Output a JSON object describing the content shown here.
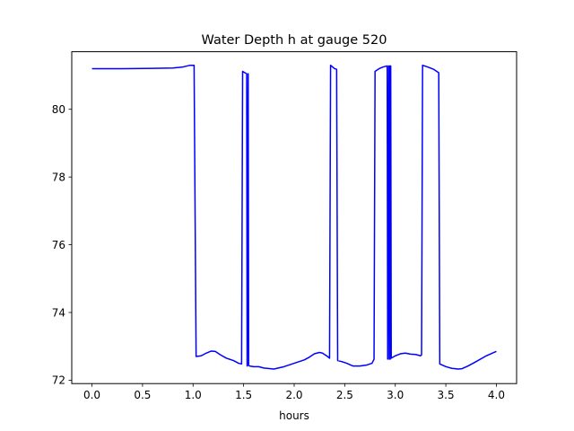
{
  "chart_data": {
    "type": "line",
    "title": "Water Depth h at gauge 520",
    "xlabel": "hours",
    "ylabel": "",
    "xlim": [
      -0.2,
      4.2
    ],
    "ylim": [
      71.9,
      81.7
    ],
    "xticks": [
      0.0,
      0.5,
      1.0,
      1.5,
      2.0,
      2.5,
      3.0,
      3.5,
      4.0
    ],
    "xtick_labels": [
      "0.0",
      "0.5",
      "1.0",
      "1.5",
      "2.0",
      "2.5",
      "3.0",
      "3.5",
      "4.0"
    ],
    "yticks": [
      72,
      74,
      76,
      78,
      80
    ],
    "ytick_labels": [
      "72",
      "74",
      "76",
      "78",
      "80"
    ],
    "grid": false,
    "series": [
      {
        "color": "#0000ff",
        "x": [
          0.0,
          0.3,
          0.6,
          0.8,
          0.9,
          0.97,
          1.01,
          1.03,
          1.08,
          1.13,
          1.18,
          1.22,
          1.27,
          1.33,
          1.4,
          1.45,
          1.48,
          1.49,
          1.53,
          1.535,
          1.545,
          1.55,
          1.56,
          1.6,
          1.65,
          1.7,
          1.8,
          1.9,
          2.0,
          2.1,
          2.15,
          2.2,
          2.25,
          2.28,
          2.33,
          2.35,
          2.36,
          2.4,
          2.42,
          2.43,
          2.47,
          2.52,
          2.58,
          2.65,
          2.72,
          2.77,
          2.79,
          2.8,
          2.84,
          2.88,
          2.92,
          2.925,
          2.935,
          2.94,
          2.945,
          2.95,
          2.955,
          2.96,
          3.0,
          3.05,
          3.1,
          3.15,
          3.2,
          3.25,
          3.26,
          3.27,
          3.32,
          3.38,
          3.43,
          3.44,
          3.5,
          3.56,
          3.62,
          3.66,
          3.72,
          3.8,
          3.9,
          4.0
        ],
        "y": [
          81.2,
          81.2,
          81.21,
          81.22,
          81.25,
          81.3,
          81.3,
          72.7,
          72.72,
          72.8,
          72.86,
          72.85,
          72.75,
          72.65,
          72.58,
          72.5,
          72.48,
          81.12,
          81.05,
          72.42,
          81.05,
          72.43,
          72.42,
          72.4,
          72.4,
          72.36,
          72.33,
          72.4,
          72.5,
          72.6,
          72.68,
          72.78,
          72.82,
          72.8,
          72.7,
          72.65,
          81.3,
          81.2,
          81.18,
          72.58,
          72.55,
          72.5,
          72.42,
          72.42,
          72.45,
          72.5,
          72.62,
          81.12,
          81.2,
          81.25,
          81.28,
          72.62,
          81.28,
          72.62,
          81.28,
          72.62,
          81.28,
          72.65,
          72.72,
          72.78,
          72.8,
          72.77,
          72.76,
          72.72,
          72.75,
          81.3,
          81.25,
          81.18,
          81.08,
          72.48,
          72.4,
          72.35,
          72.33,
          72.34,
          72.42,
          72.55,
          72.72,
          72.85
        ]
      }
    ]
  }
}
